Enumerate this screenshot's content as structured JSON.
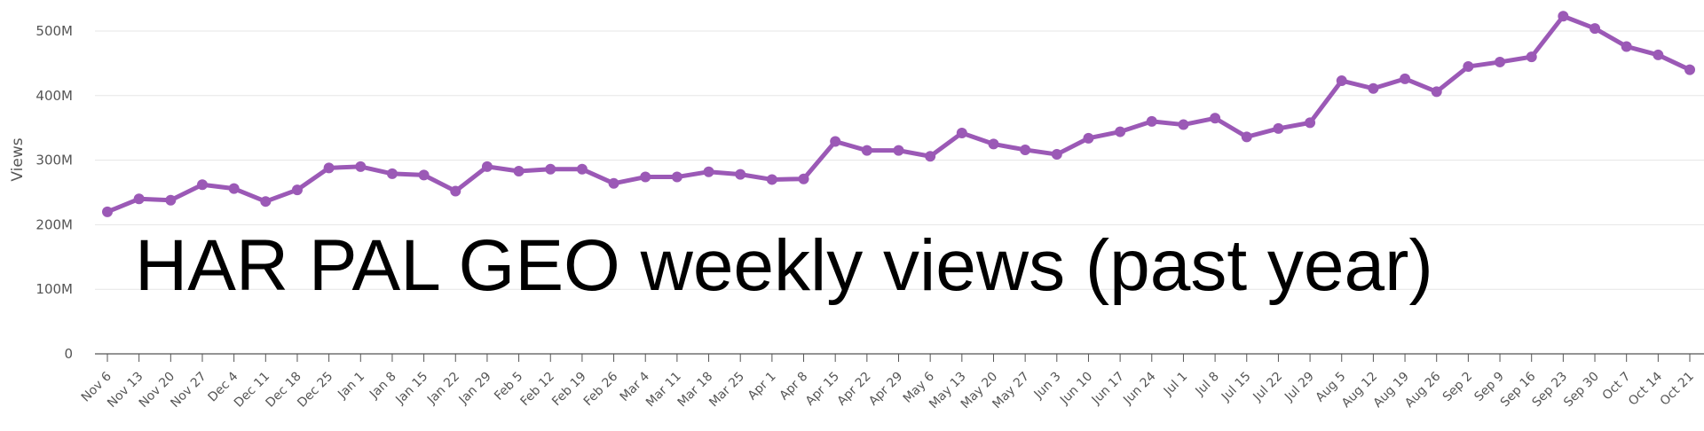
{
  "chart_data": {
    "type": "line",
    "title": "HAR PAL GEO weekly views (past year)",
    "xlabel": "",
    "ylabel": "Views",
    "ylim": [
      0,
      550
    ],
    "y_ticks": [
      {
        "value": 0,
        "label": "0"
      },
      {
        "value": 100,
        "label": "100M"
      },
      {
        "value": 200,
        "label": "200M"
      },
      {
        "value": 300,
        "label": "300M"
      },
      {
        "value": 400,
        "label": "400M"
      },
      {
        "value": 500,
        "label": "500M"
      }
    ],
    "grid": true,
    "legend": "none",
    "colors": {
      "line": "#9b59b6",
      "grid": "#e6e6e6",
      "axis": "#555555"
    },
    "categories": [
      "Nov 6",
      "Nov 13",
      "Nov 20",
      "Nov 27",
      "Dec 4",
      "Dec 11",
      "Dec 18",
      "Dec 25",
      "Jan 1",
      "Jan 8",
      "Jan 15",
      "Jan 22",
      "Jan 29",
      "Feb 5",
      "Feb 12",
      "Feb 19",
      "Feb 26",
      "Mar 4",
      "Mar 11",
      "Mar 18",
      "Mar 25",
      "Apr 1",
      "Apr 8",
      "Apr 15",
      "Apr 22",
      "Apr 29",
      "May 6",
      "May 13",
      "May 20",
      "May 27",
      "Jun 3",
      "Jun 10",
      "Jun 17",
      "Jun 24",
      "Jul 1",
      "Jul 8",
      "Jul 15",
      "Jul 22",
      "Jul 29",
      "Aug 5",
      "Aug 12",
      "Aug 19",
      "Aug 26",
      "Sep 2",
      "Sep 9",
      "Sep 16",
      "Sep 23",
      "Sep 30",
      "Oct 7",
      "Oct 14",
      "Oct 21"
    ],
    "series": [
      {
        "values": [
          220,
          240,
          238,
          262,
          256,
          236,
          254,
          288,
          290,
          279,
          277,
          252,
          290,
          283,
          286,
          286,
          264,
          274,
          274,
          282,
          278,
          270,
          271,
          329,
          315,
          315,
          306,
          342,
          325,
          316,
          309,
          334,
          344,
          360,
          355,
          365,
          336,
          349,
          358,
          423,
          411,
          426,
          406,
          445,
          452,
          460,
          523,
          504,
          476,
          463,
          440
        ]
      }
    ]
  }
}
